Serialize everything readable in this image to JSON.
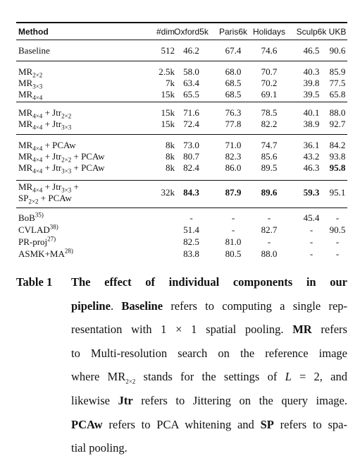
{
  "table": {
    "headers": [
      "Method",
      "#dim",
      "Oxford5k",
      "Paris6k",
      "Holidays",
      "Sculp6k",
      "UKB"
    ],
    "groups": [
      [
        {
          "method": "Baseline",
          "cells": [
            "512",
            "46.2",
            "67.4",
            "74.6",
            "46.5",
            "90.6"
          ]
        }
      ],
      [
        {
          "method": "MR_{2×2}",
          "cells": [
            "2.5k",
            "58.0",
            "68.0",
            "70.7",
            "40.3",
            "85.9"
          ]
        },
        {
          "method": "MR_{3×3}",
          "cells": [
            "7k",
            "63.4",
            "68.5",
            "70.2",
            "39.8",
            "77.5"
          ]
        },
        {
          "method": "MR_{4×4}",
          "cells": [
            "15k",
            "65.5",
            "68.5",
            "69.1",
            "39.5",
            "65.8"
          ]
        }
      ],
      [
        {
          "method": "MR_{4×4} + Jtr_{2×2}",
          "cells": [
            "15k",
            "71.6",
            "76.3",
            "78.5",
            "40.1",
            "88.0"
          ]
        },
        {
          "method": "MR_{4×4} + Jtr_{3×3}",
          "cells": [
            "15k",
            "72.4",
            "77.8",
            "82.2",
            "38.9",
            "92.7"
          ]
        }
      ],
      [
        {
          "method": "MR_{4×4} + PCAw",
          "cells": [
            "8k",
            "73.0",
            "71.0",
            "74.7",
            "36.1",
            "84.2"
          ]
        },
        {
          "method": "MR_{4×4} + Jtr_{2×2} + PCAw",
          "cells": [
            "8k",
            "80.7",
            "82.3",
            "85.6",
            "43.2",
            "93.8"
          ]
        },
        {
          "method": "MR_{4×4} + Jtr_{3×3} + PCAw",
          "cells": [
            "8k",
            "82.4",
            "86.0",
            "89.5",
            "46.3",
            "95.8"
          ],
          "bold": [
            5
          ]
        }
      ],
      [
        {
          "method": "MR_{4×4} + Jtr_{3×3} + SP_{2×2} + PCAw",
          "cells": [
            "32k",
            "84.3",
            "87.9",
            "89.6",
            "59.3",
            "95.1"
          ],
          "bold": [
            1,
            2,
            3,
            4
          ]
        }
      ],
      [
        {
          "method": "BoB^{35)}",
          "cells": [
            "",
            "-",
            "-",
            "-",
            "45.4",
            "-"
          ]
        },
        {
          "method": "CVLAD^{38)}",
          "cells": [
            "",
            "51.4",
            "-",
            "82.7",
            "-",
            "90.5"
          ]
        },
        {
          "method": "PR-proj^{27)}",
          "cells": [
            "",
            "82.5",
            "81.0",
            "-",
            "-",
            "-"
          ]
        },
        {
          "method": "ASMK+MA^{28)}",
          "cells": [
            "",
            "83.8",
            "80.5",
            "88.0",
            "-",
            "-"
          ]
        }
      ]
    ]
  },
  "caption": {
    "label": "Table 1",
    "lines": [
      "The effect of individual components in our",
      "pipeline. Baseline refers to computing a single rep-",
      "resentation with 1 × 1 spatial pooling. MR refers",
      "to Multi-resolution search on the reference image",
      "where MR_{2×2} stands for the settings of L = 2, and",
      "likewise Jtr refers to Jittering on the query image.",
      "PCAw refers to PCA whitening and SP refers to spa-",
      "tial pooling."
    ]
  }
}
